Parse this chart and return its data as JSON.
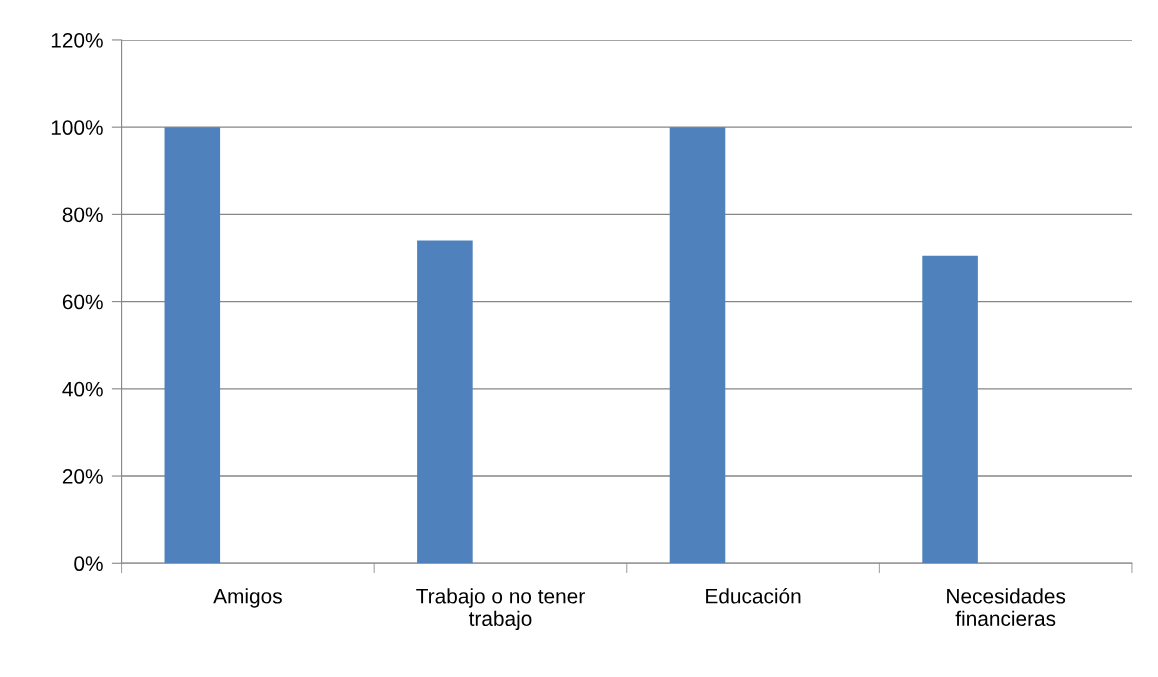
{
  "chart_data": {
    "type": "bar",
    "categories": [
      "Amigos",
      "Trabajo o no tener\ntrabajo",
      "Educación",
      "Necesidades\nfinancieras"
    ],
    "values": [
      100,
      74,
      100,
      70.5
    ],
    "color": "#4f81bd",
    "ylim": [
      0,
      120
    ],
    "yticks": [
      {
        "value": 0,
        "label": "0%"
      },
      {
        "value": 20,
        "label": "20%"
      },
      {
        "value": 40,
        "label": "40%"
      },
      {
        "value": 60,
        "label": "60%"
      },
      {
        "value": 80,
        "label": "80%"
      },
      {
        "value": 100,
        "label": "100%"
      },
      {
        "value": 120,
        "label": "120%"
      }
    ],
    "grid": "y",
    "legend": false
  }
}
